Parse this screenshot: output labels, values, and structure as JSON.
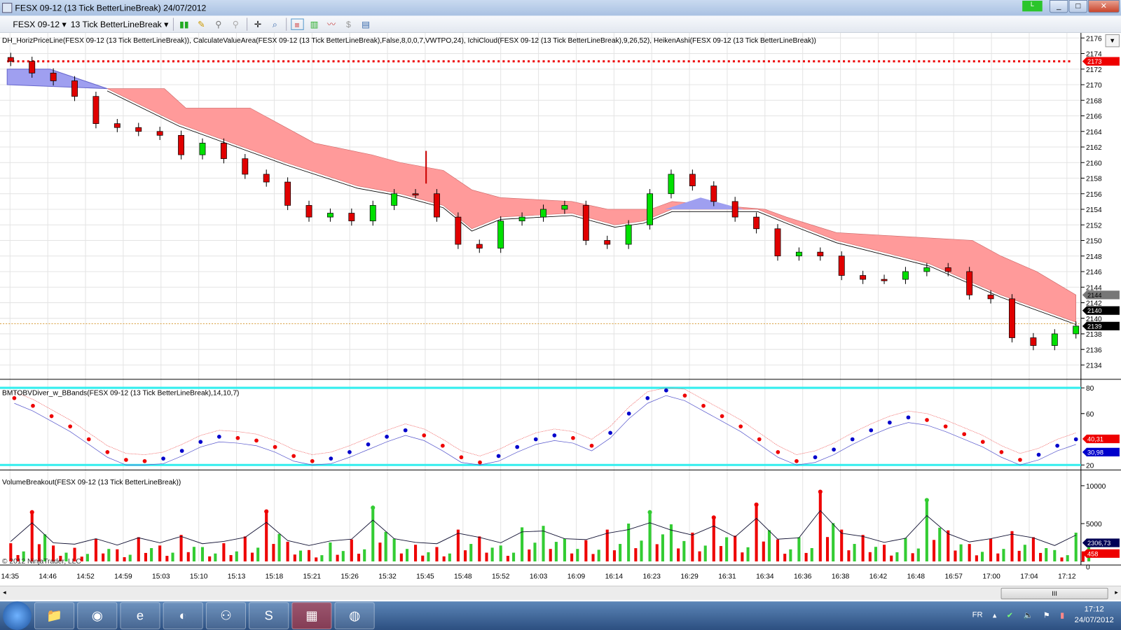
{
  "window": {
    "title": "FESX 09-12 (13 Tick BetterLineBreak)  24/07/2012",
    "badge": "L",
    "min": "_",
    "max": "□",
    "close": "✕"
  },
  "toolbar": {
    "instrument": "FESX 09-12",
    "period": "13 Tick BetterLineBreak",
    "icons": [
      "bar-style-icon",
      "pencil-icon",
      "pin-add-icon",
      "pin-remove-icon",
      "crosshair-icon",
      "zoom-icon",
      "order-panel-icon",
      "data-box-icon",
      "indicators-icon",
      "dollar-icon",
      "properties-icon"
    ]
  },
  "price_panel": {
    "label": "DH_HorizPriceLine(FESX 09-12 (13 Tick BetterLineBreak)), CalculateValueArea(FESX 09-12 (13 Tick BetterLineBreak),False,8,0,0,7,VWTPO,24), IchiCloud(FESX 09-12 (13 Tick BetterLineBreak),9,26,52), HeikenAshi(FESX 09-12 (13 Tick BetterLineBreak))",
    "ticks": [
      "2176",
      "2174",
      "2172",
      "2170",
      "2168",
      "2166",
      "2164",
      "2162",
      "2160",
      "2158",
      "2156",
      "2154",
      "2152",
      "2150",
      "2148",
      "2146",
      "2144",
      "2142",
      "2140",
      "2138",
      "2136",
      "2134"
    ],
    "hline_value": 2173,
    "hline_label": "2173",
    "gray_marker": "2144",
    "last_price": "2139",
    "last_price_value": 2139.3,
    "last_price_back": "2140",
    "closes": [
      2173,
      2171.5,
      2170.5,
      2168.5,
      2165,
      2164.5,
      2164,
      2163.5,
      2161,
      2162.5,
      2160.5,
      2158.5,
      2157.5,
      2154.5,
      2153,
      2153.5,
      2152.5,
      2154.5,
      2156,
      2156,
      2153,
      2149.5,
      2149,
      2152.5,
      2153,
      2154,
      2154.5,
      2150,
      2149.5,
      2152,
      2156,
      2158.5,
      2157,
      2155,
      2153,
      2151.5,
      2148,
      2148.5,
      2148,
      2145.5,
      2145,
      2145,
      2146,
      2146.5,
      2146,
      2143,
      2142.5,
      2137.5,
      2136.5,
      2138,
      2139
    ],
    "cloud_top": [
      [
        150,
        2169.5
      ],
      [
        230,
        2169.5
      ],
      [
        260,
        2167
      ],
      [
        350,
        2167
      ],
      [
        440,
        2162.5
      ],
      [
        520,
        2161
      ],
      [
        560,
        2160
      ],
      [
        620,
        2159
      ],
      [
        660,
        2156.5
      ],
      [
        700,
        2155.5
      ],
      [
        800,
        2155
      ],
      [
        850,
        2154
      ],
      [
        910,
        2154
      ],
      [
        940,
        2155
      ],
      [
        1070,
        2154
      ],
      [
        1100,
        2153
      ],
      [
        1170,
        2151
      ],
      [
        1360,
        2150
      ],
      [
        1400,
        2148
      ],
      [
        1450,
        2146
      ],
      [
        1505,
        2143
      ]
    ],
    "cloud_bottom": [
      [
        150,
        2169.5
      ],
      [
        250,
        2165
      ],
      [
        400,
        2160
      ],
      [
        500,
        2157
      ],
      [
        560,
        2156
      ],
      [
        620,
        2154.5
      ],
      [
        660,
        2151.5
      ],
      [
        700,
        2153
      ],
      [
        800,
        2153.5
      ],
      [
        860,
        2152
      ],
      [
        900,
        2152.5
      ],
      [
        940,
        2154
      ],
      [
        1060,
        2154
      ],
      [
        1100,
        2152.5
      ],
      [
        1170,
        2150
      ],
      [
        1300,
        2147
      ],
      [
        1400,
        2143
      ],
      [
        1505,
        2139.5
      ]
    ]
  },
  "osc_panel": {
    "label": "BMTOBVDiver_w_BBands(FESX 09-12 (13 Tick BetterLineBreak),14,10,7)",
    "ticks": [
      "80",
      "60",
      "20"
    ],
    "value_red": "40,31",
    "value_blue": "30,98",
    "values": [
      72,
      66,
      58,
      50,
      40,
      30,
      24,
      23,
      25,
      31,
      38,
      42,
      41,
      39,
      34,
      27,
      23,
      25,
      30,
      36,
      42,
      47,
      43,
      35,
      26,
      22,
      27,
      34,
      40,
      43,
      41,
      35,
      45,
      60,
      72,
      78,
      74,
      66,
      58,
      50,
      40,
      30,
      23,
      26,
      32,
      40,
      47,
      53,
      57,
      55,
      50,
      44,
      38,
      30,
      24,
      28,
      35,
      40
    ]
  },
  "volume_panel": {
    "label": "VolumeBreakout(FESX 09-12 (13 Tick BetterLineBreak))",
    "ticks": [
      "10000",
      "5000",
      "0"
    ],
    "value": "2306,73",
    "value_red": "458",
    "values": [
      2400,
      6500,
      2100,
      1800,
      3000,
      1600,
      3200,
      2100,
      3500,
      1900,
      2400,
      3300,
      6600,
      2600,
      1500,
      2500,
      2900,
      7100,
      3000,
      2200,
      1900,
      4200,
      3300,
      2100,
      4500,
      4700,
      3000,
      2800,
      4200,
      5000,
      6500,
      4900,
      3800,
      5800,
      3400,
      7500,
      2900,
      3200,
      9200,
      4200,
      3500,
      2200,
      3100,
      8100,
      4100,
      2300,
      3000,
      4000,
      3200,
      1500,
      3800
    ]
  },
  "xaxis": [
    "14:35",
    "14:46",
    "14:52",
    "14:59",
    "15:03",
    "15:10",
    "15:13",
    "15:18",
    "15:21",
    "15:26",
    "15:32",
    "15:45",
    "15:48",
    "15:52",
    "16:03",
    "16:09",
    "16:14",
    "16:23",
    "16:29",
    "16:31",
    "16:34",
    "16:36",
    "16:38",
    "16:42",
    "16:48",
    "16:57",
    "17:00",
    "17:04",
    "17:12"
  ],
  "copyright": "© 2012 NinjaTrader, LLC",
  "scrollbar": {
    "grip": "III"
  },
  "taskbar": {
    "apps": [
      "explorer-icon",
      "chrome-icon",
      "ie-icon",
      "app-icon",
      "network-icon",
      "skype-icon",
      "ninjatrader-icon",
      "globe-icon"
    ],
    "lang": "FR",
    "time": "17:12",
    "date": "24/07/2012"
  }
}
